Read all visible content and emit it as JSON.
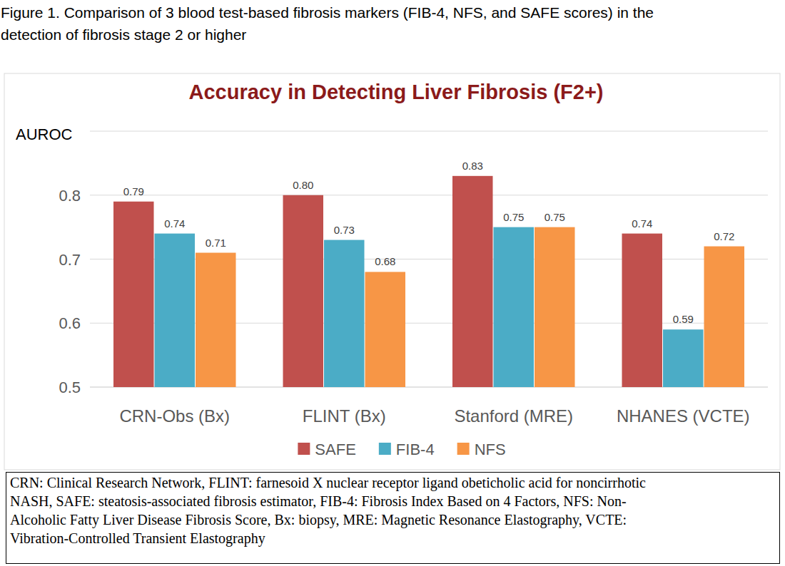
{
  "caption": [
    "Figure 1.  Comparison of 3 blood test-based fibrosis markers (FIB-4, NFS, and SAFE scores) in the",
    "detection of fibrosis stage 2 or higher"
  ],
  "chart_data": {
    "type": "bar",
    "title": "Accuracy in Detecting Liver Fibrosis (F2+)",
    "ylabel": "AUROC",
    "categories": [
      "CRN-Obs (Bx)",
      "FLINT (Bx)",
      "Stanford (MRE)",
      "NHANES (VCTE)"
    ],
    "series": [
      {
        "name": "SAFE",
        "color": "#c0504d",
        "values": [
          0.79,
          0.8,
          0.83,
          0.74
        ],
        "value_labels": [
          "0.79",
          "0.80",
          "0.83",
          "0.74"
        ]
      },
      {
        "name": "FIB-4",
        "color": "#4bacc6",
        "values": [
          0.74,
          0.73,
          0.75,
          0.59
        ],
        "value_labels": [
          "0.74",
          "0.73",
          "0.75",
          "0.59"
        ]
      },
      {
        "name": "NFS",
        "color": "#f79646",
        "values": [
          0.71,
          0.68,
          0.75,
          0.72
        ],
        "value_labels": [
          "0.71",
          "0.68",
          "0.75",
          "0.72"
        ]
      }
    ],
    "ylim": [
      0.5,
      0.9
    ],
    "yticks": [
      0.5,
      0.6,
      0.7,
      0.8
    ],
    "grid": true,
    "legend": "bottom",
    "data_labels": true
  },
  "footnote": [
    "CRN: Clinical Research Network, FLINT: farnesoid X nuclear receptor ligand obeticholic acid for noncirrhotic",
    "NASH, SAFE: steatosis-associated fibrosis estimator, FIB-4: Fibrosis Index Based on 4 Factors, NFS: Non-",
    "Alcoholic Fatty Liver Disease Fibrosis Score, Bx: biopsy, MRE: Magnetic Resonance Elastography, VCTE:",
    "Vibration-Controlled Transient Elastography"
  ]
}
